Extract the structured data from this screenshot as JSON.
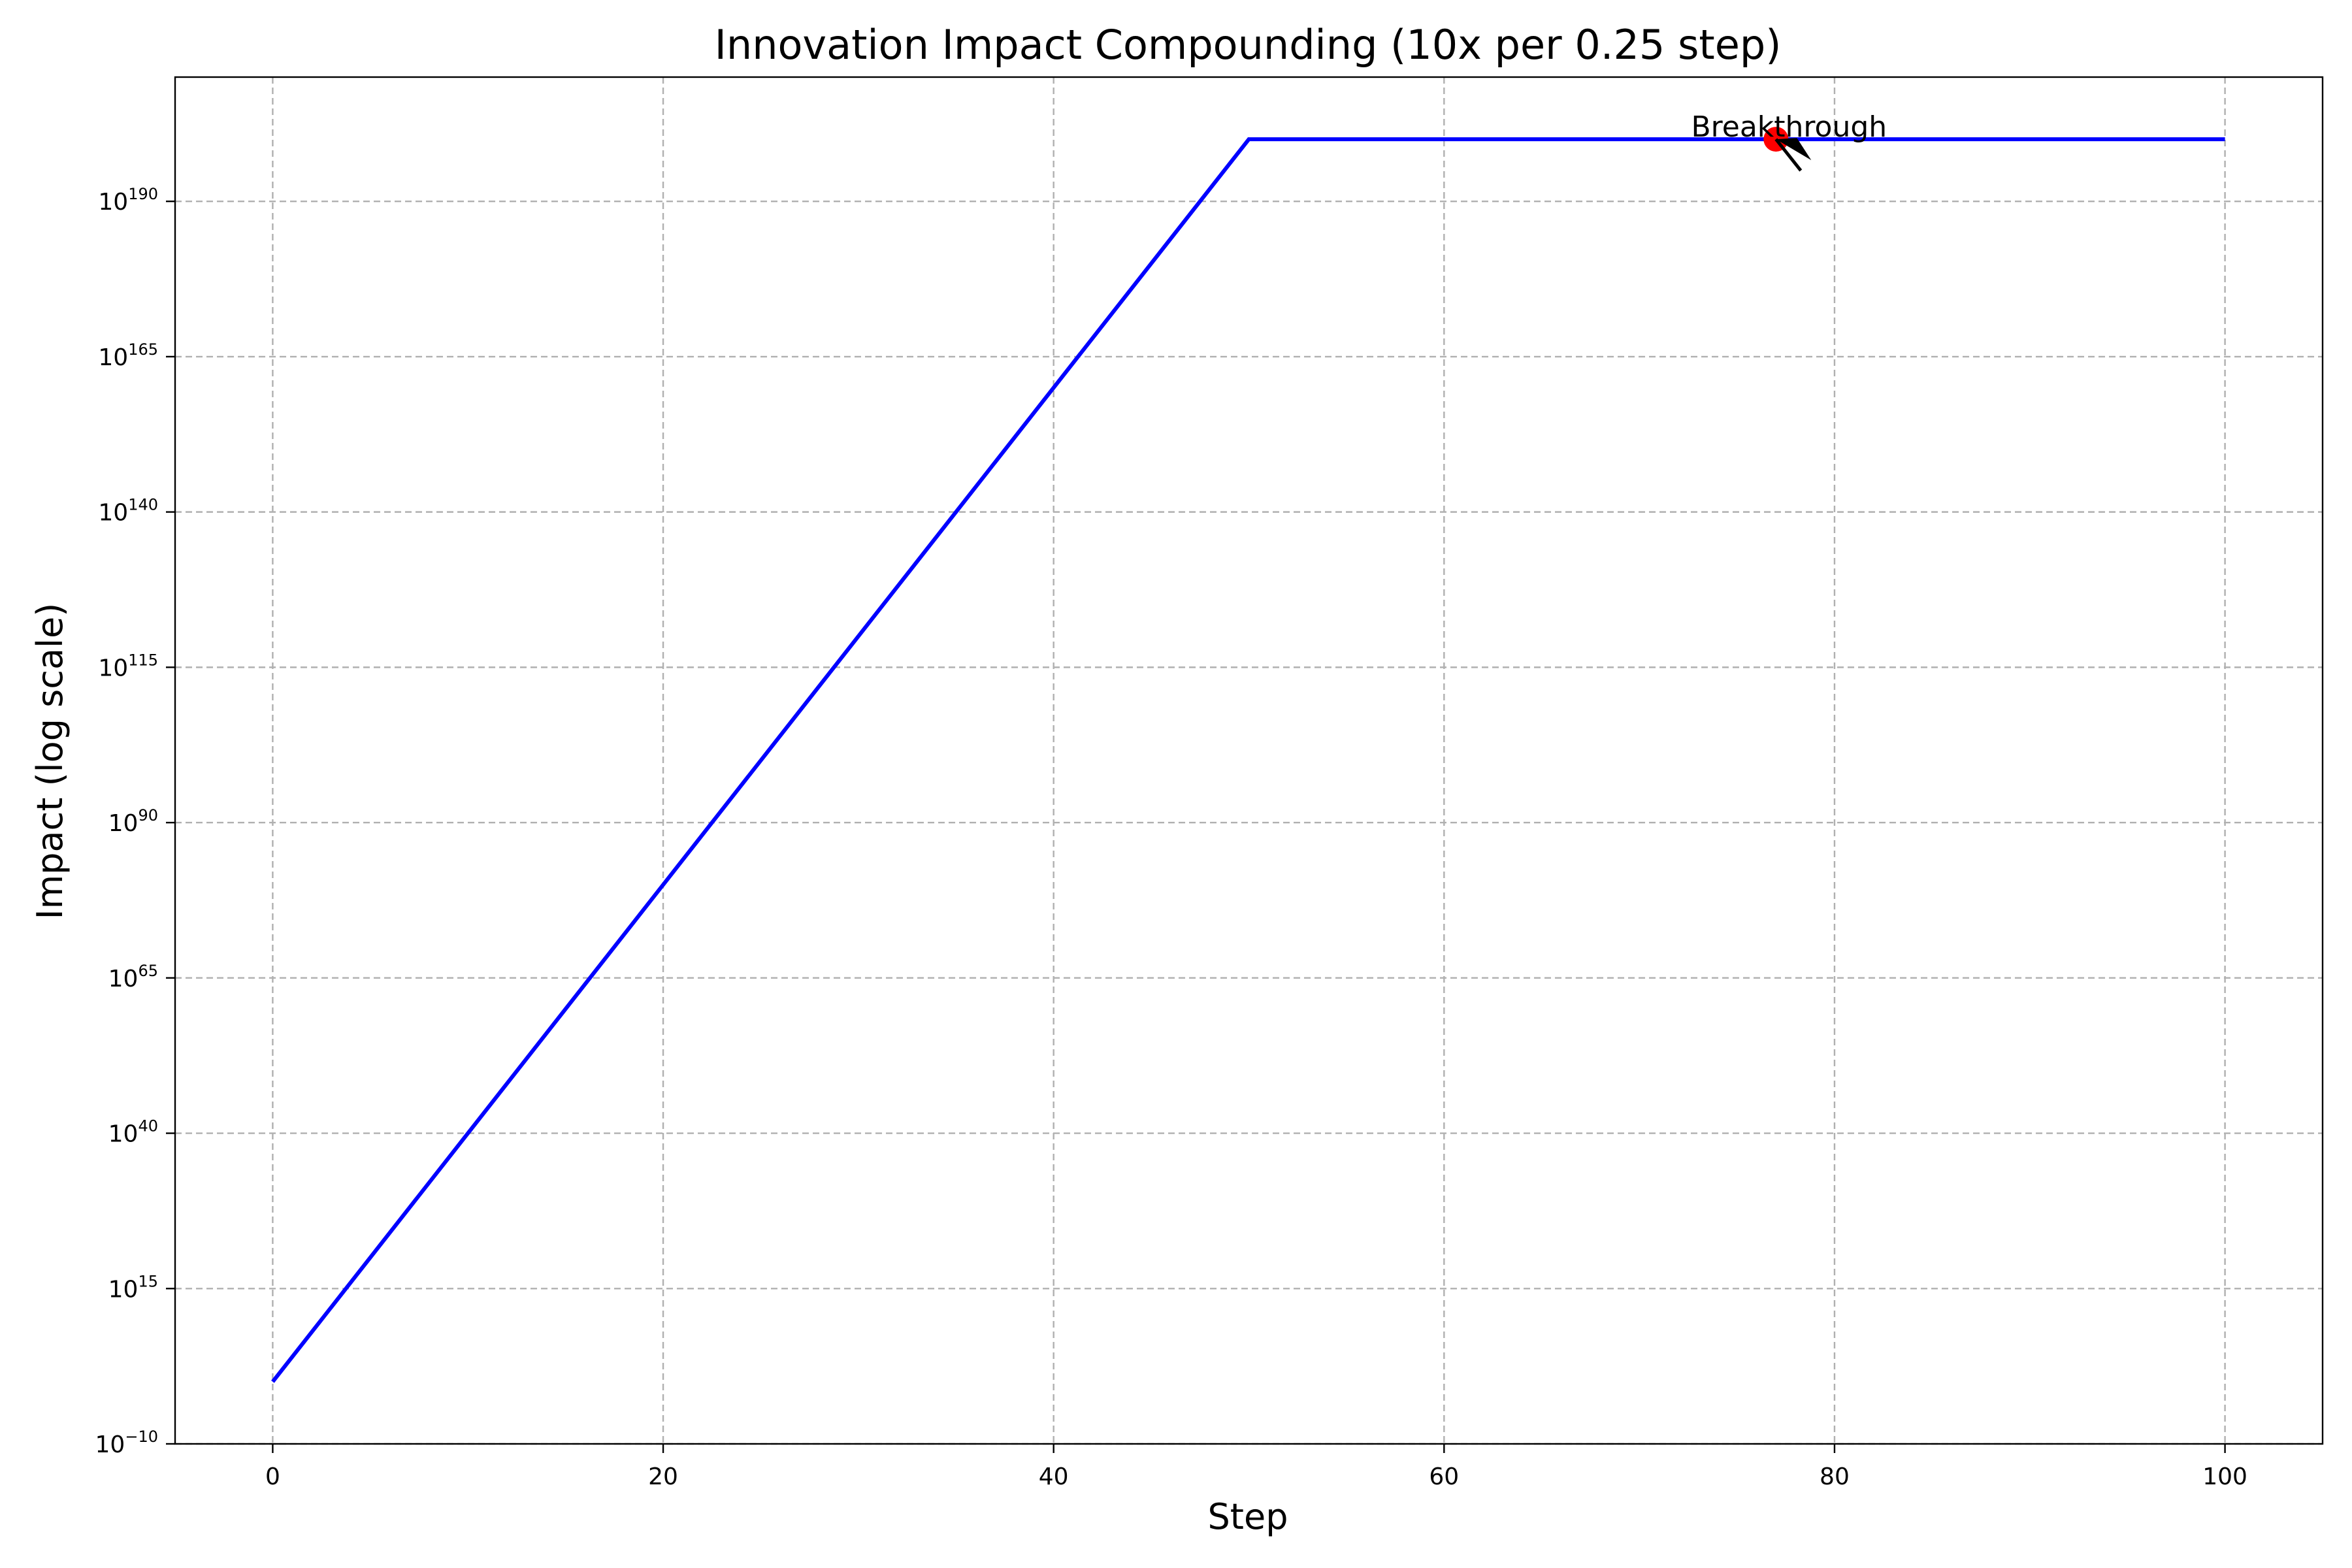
{
  "chart_data": {
    "type": "line",
    "title": "Innovation Impact Compounding (10x per 0.25 step)",
    "xlabel": "Step",
    "ylabel": "Impact (log scale)",
    "xlim": [
      -5,
      105
    ],
    "ylim_exponent": [
      -10,
      210
    ],
    "y_scale": "log",
    "x_ticks": [
      0,
      20,
      40,
      60,
      80,
      100
    ],
    "y_tick_exponents": [
      -10,
      15,
      40,
      65,
      90,
      115,
      140,
      165,
      190
    ],
    "grid": true,
    "series": [
      {
        "color": "#0000ff",
        "x": [
          0,
          50,
          100
        ],
        "y_exponent": [
          0,
          200,
          200
        ]
      }
    ],
    "annotations": [
      {
        "text": "Breakthrough",
        "point": {
          "x": 77,
          "y_exponent": 200
        },
        "marker_color": "#ff0000",
        "arrow_color": "#000000"
      }
    ]
  }
}
